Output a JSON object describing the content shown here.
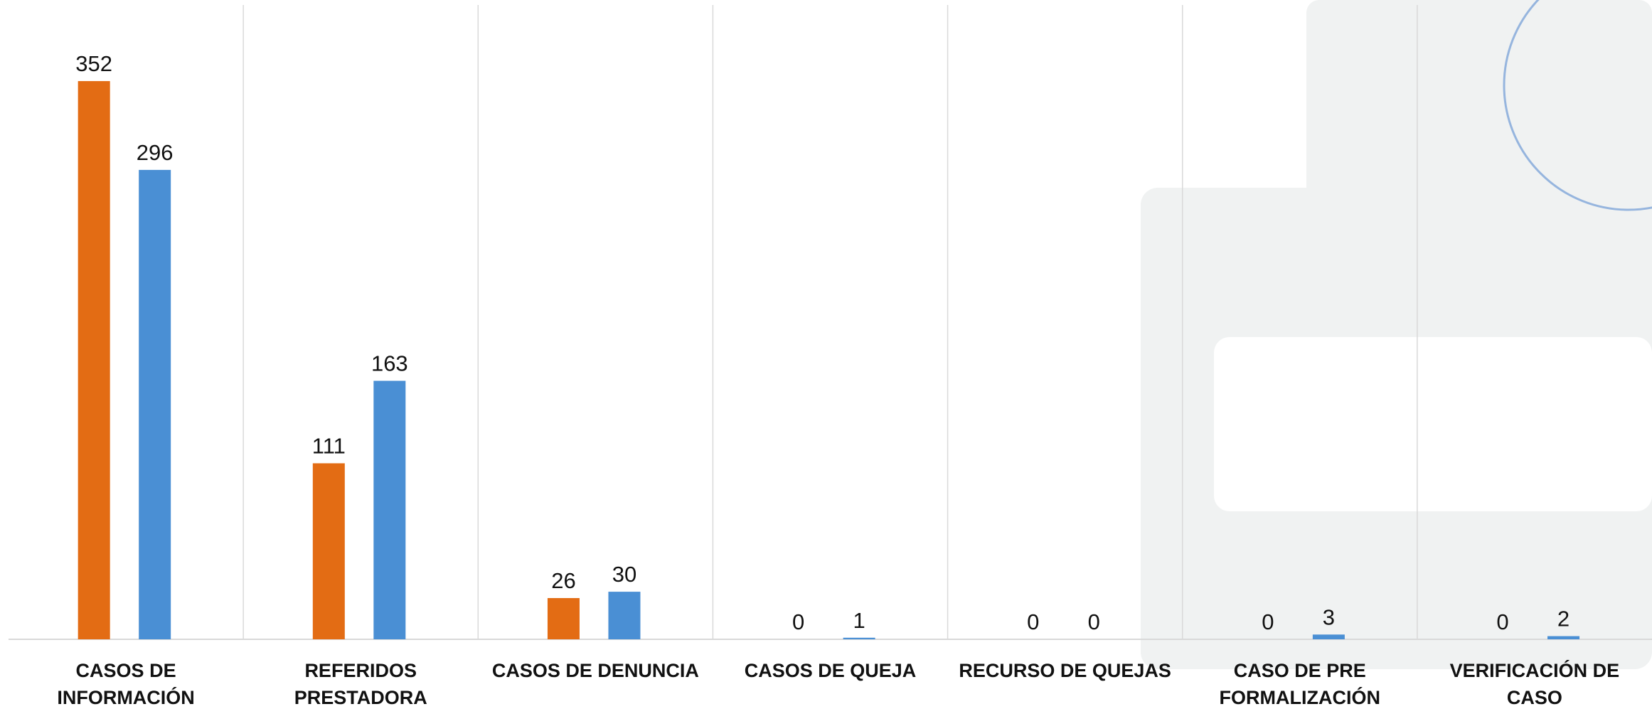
{
  "chart_data": {
    "type": "bar",
    "categories": [
      "CASOS DE INFORMACIÓN",
      "REFERIDOS PRESTADORA",
      "CASOS DE DENUNCIA",
      "CASOS DE QUEJA",
      "RECURSO DE QUEJAS",
      "CASO DE PRE FORMALIZACIÓN",
      "VERIFICACIÓN DE CASO"
    ],
    "series": [
      {
        "color": "#e36c14",
        "values": [
          352,
          111,
          26,
          0,
          0,
          0,
          0
        ]
      },
      {
        "color": "#4a8fd4",
        "values": [
          296,
          163,
          30,
          1,
          0,
          3,
          2
        ]
      }
    ],
    "ylim": [
      0,
      400
    ]
  }
}
